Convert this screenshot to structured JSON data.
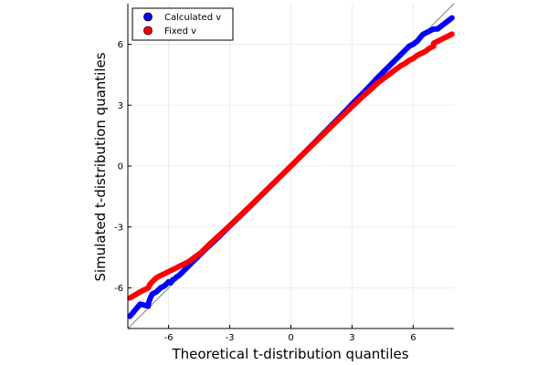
{
  "chart_data": {
    "type": "scatter",
    "title": "",
    "xlabel": "Theoretical t-distribution quantiles",
    "ylabel": "Simulated t-distribution quantiles",
    "xlim": [
      -8,
      8
    ],
    "ylim": [
      -8,
      8
    ],
    "xticks": [
      -6,
      -3,
      0,
      3,
      6
    ],
    "yticks": [
      -6,
      -3,
      0,
      3,
      6
    ],
    "grid": true,
    "legend_position": "top-left",
    "reference_line": {
      "slope": 1,
      "intercept": 0,
      "color": "#808080"
    },
    "series": [
      {
        "name": "Calculated v",
        "color": "#0000ff",
        "points": [
          [
            -7.9,
            -7.4
          ],
          [
            -7.4,
            -6.8
          ],
          [
            -7.0,
            -6.9
          ],
          [
            -7.0,
            -6.8
          ],
          [
            -6.9,
            -6.5
          ],
          [
            -6.8,
            -6.3
          ],
          [
            -6.6,
            -6.2
          ],
          [
            -6.5,
            -6.1
          ],
          [
            -6.4,
            -6.0
          ],
          [
            -6.2,
            -5.9
          ],
          [
            -6.1,
            -5.8
          ],
          [
            -6.0,
            -5.7
          ],
          [
            -5.9,
            -5.75
          ],
          [
            -5.8,
            -5.6
          ],
          [
            -5.7,
            -5.55
          ],
          [
            -5.6,
            -5.45
          ],
          [
            -5.5,
            -5.4
          ],
          [
            -5.4,
            -5.3
          ],
          [
            -5.3,
            -5.2
          ],
          [
            -5.2,
            -5.1
          ],
          [
            -5.1,
            -5.0
          ],
          [
            -5.0,
            -4.9
          ],
          [
            -4.8,
            -4.7
          ],
          [
            -4.6,
            -4.5
          ],
          [
            -4.4,
            -4.3
          ],
          [
            -4.2,
            -4.1
          ],
          [
            -4.0,
            -3.92
          ],
          [
            -3.5,
            -3.45
          ],
          [
            -3.0,
            -2.95
          ],
          [
            -2.5,
            -2.47
          ],
          [
            -2.0,
            -1.98
          ],
          [
            -1.5,
            -1.49
          ],
          [
            -1.0,
            -0.99
          ],
          [
            -0.5,
            -0.5
          ],
          [
            0.0,
            0.0
          ],
          [
            0.5,
            0.5
          ],
          [
            1.0,
            1.0
          ],
          [
            1.5,
            1.51
          ],
          [
            2.0,
            2.02
          ],
          [
            2.5,
            2.53
          ],
          [
            3.0,
            3.05
          ],
          [
            3.5,
            3.56
          ],
          [
            4.0,
            4.08
          ],
          [
            4.2,
            4.3
          ],
          [
            4.4,
            4.5
          ],
          [
            4.6,
            4.7
          ],
          [
            4.8,
            4.9
          ],
          [
            5.0,
            5.1
          ],
          [
            5.2,
            5.3
          ],
          [
            5.4,
            5.5
          ],
          [
            5.6,
            5.7
          ],
          [
            5.8,
            5.9
          ],
          [
            6.0,
            6.0
          ],
          [
            6.2,
            6.15
          ],
          [
            6.4,
            6.4
          ],
          [
            6.5,
            6.5
          ],
          [
            6.7,
            6.6
          ],
          [
            7.0,
            6.75
          ],
          [
            7.2,
            6.75
          ],
          [
            7.9,
            7.3
          ]
        ]
      },
      {
        "name": "Fixed v",
        "color": "#ff0000",
        "points": [
          [
            -7.9,
            -6.5
          ],
          [
            -7.4,
            -6.2
          ],
          [
            -7.0,
            -6.0
          ],
          [
            -6.9,
            -5.8
          ],
          [
            -6.8,
            -5.7
          ],
          [
            -6.6,
            -5.5
          ],
          [
            -6.4,
            -5.4
          ],
          [
            -6.2,
            -5.3
          ],
          [
            -6.0,
            -5.2
          ],
          [
            -5.8,
            -5.1
          ],
          [
            -5.6,
            -5.0
          ],
          [
            -5.4,
            -4.9
          ],
          [
            -5.2,
            -4.8
          ],
          [
            -5.0,
            -4.7
          ],
          [
            -4.8,
            -4.55
          ],
          [
            -4.6,
            -4.4
          ],
          [
            -4.4,
            -4.25
          ],
          [
            -4.2,
            -4.05
          ],
          [
            -4.0,
            -3.85
          ],
          [
            -3.5,
            -3.4
          ],
          [
            -3.0,
            -2.93
          ],
          [
            -2.5,
            -2.45
          ],
          [
            -2.0,
            -1.97
          ],
          [
            -1.5,
            -1.48
          ],
          [
            -1.0,
            -0.99
          ],
          [
            -0.5,
            -0.5
          ],
          [
            0.0,
            0.0
          ],
          [
            0.5,
            0.5
          ],
          [
            1.0,
            0.99
          ],
          [
            1.5,
            1.48
          ],
          [
            2.0,
            1.97
          ],
          [
            2.5,
            2.45
          ],
          [
            3.0,
            2.93
          ],
          [
            3.5,
            3.4
          ],
          [
            4.0,
            3.85
          ],
          [
            4.2,
            4.05
          ],
          [
            4.4,
            4.2
          ],
          [
            4.6,
            4.35
          ],
          [
            4.8,
            4.5
          ],
          [
            5.0,
            4.65
          ],
          [
            5.2,
            4.8
          ],
          [
            5.4,
            4.95
          ],
          [
            5.6,
            5.05
          ],
          [
            5.8,
            5.2
          ],
          [
            6.0,
            5.3
          ],
          [
            6.2,
            5.45
          ],
          [
            6.4,
            5.55
          ],
          [
            6.6,
            5.65
          ],
          [
            6.8,
            5.8
          ],
          [
            7.0,
            5.9
          ],
          [
            7.0,
            6.05
          ],
          [
            7.9,
            6.5
          ]
        ]
      }
    ]
  }
}
